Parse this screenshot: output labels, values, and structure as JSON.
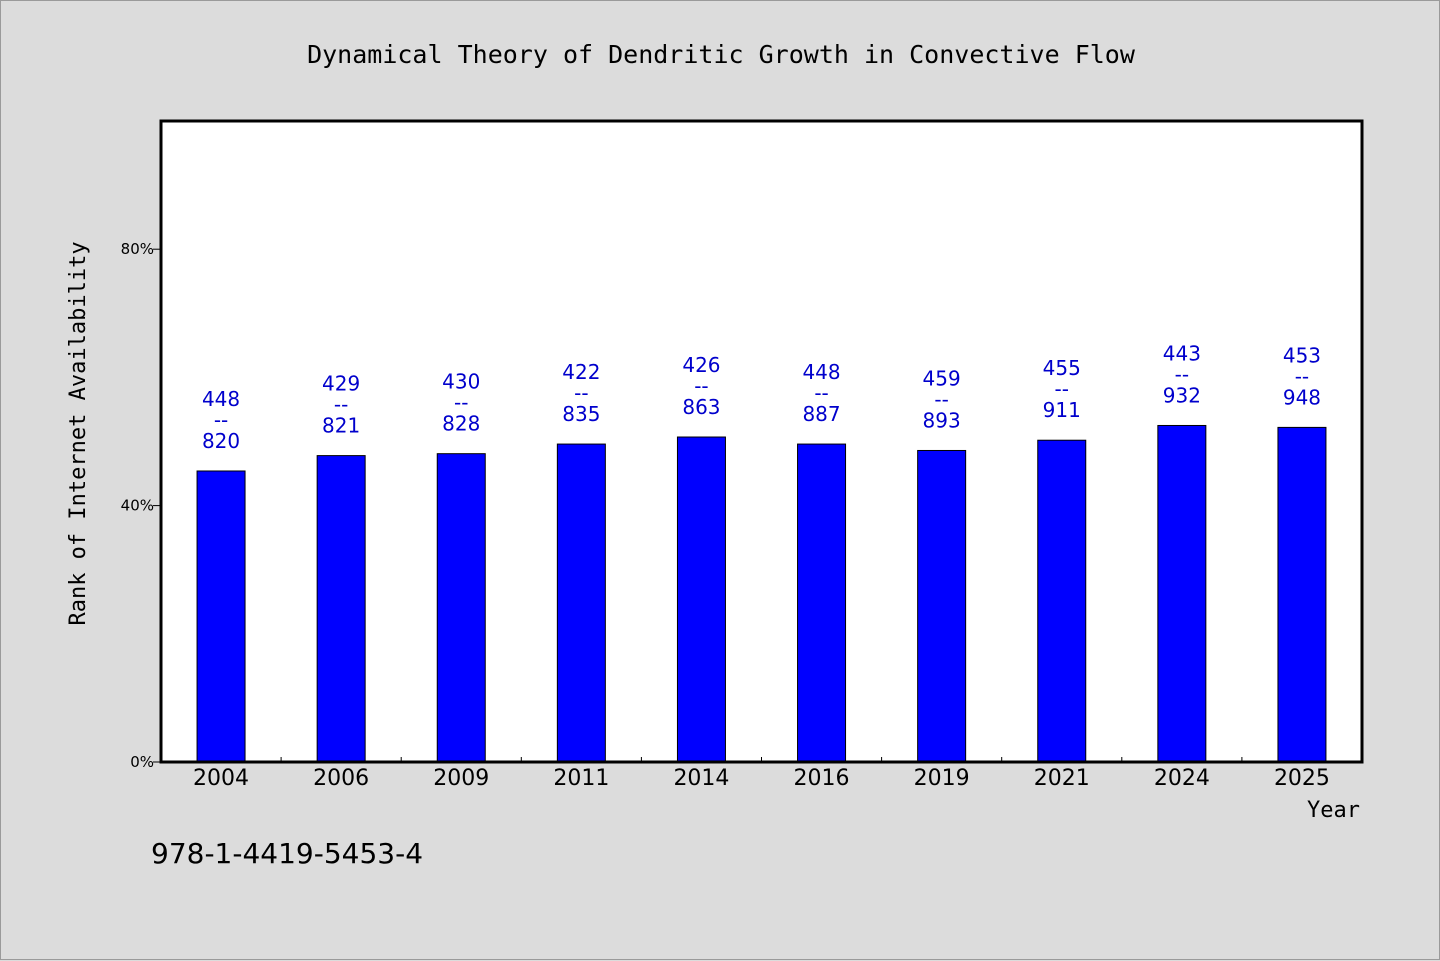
{
  "chart_data": {
    "type": "bar",
    "title": "Dynamical Theory of Dendritic Growth in Convective Flow",
    "xlabel": "Year",
    "ylabel": "Rank of Internet Availability",
    "categories": [
      "2004",
      "2006",
      "2009",
      "2011",
      "2014",
      "2016",
      "2019",
      "2021",
      "2024",
      "2025"
    ],
    "values": [
      45.4,
      47.8,
      48.1,
      49.6,
      50.7,
      49.6,
      48.6,
      50.2,
      52.5,
      52.2
    ],
    "data_labels": [
      [
        "448",
        "--",
        "820"
      ],
      [
        "429",
        "--",
        "821"
      ],
      [
        "430",
        "--",
        "828"
      ],
      [
        "422",
        "--",
        "835"
      ],
      [
        "426",
        "--",
        "863"
      ],
      [
        "448",
        "--",
        "887"
      ],
      [
        "459",
        "--",
        "893"
      ],
      [
        "455",
        "--",
        "911"
      ],
      [
        "443",
        "--",
        "932"
      ],
      [
        "453",
        "--",
        "948"
      ]
    ],
    "yticks": [
      {
        "value": 0,
        "label": "0%"
      },
      {
        "value": 40,
        "label": "40%"
      },
      {
        "value": 80,
        "label": "80%"
      }
    ],
    "ylim": [
      0,
      100
    ],
    "grid": false,
    "legend": "none",
    "bar_color": "#0000ff",
    "label_color": "#0000cc"
  },
  "footnote": "978-1-4419-5453-4"
}
